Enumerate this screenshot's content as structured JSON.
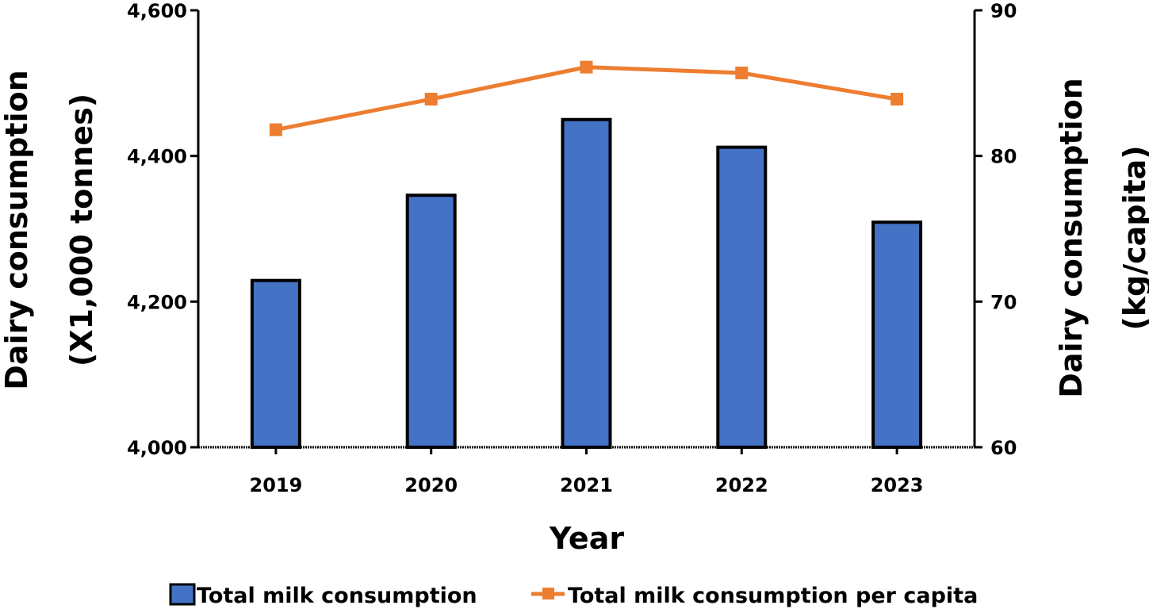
{
  "chart_data": {
    "type": "bar+line",
    "categories": [
      "2019",
      "2020",
      "2021",
      "2022",
      "2023"
    ],
    "series": [
      {
        "name": "Total milk consumption",
        "type": "bar",
        "axis": "left",
        "color": "#4472C4",
        "values": [
          4229,
          4346,
          4450,
          4412,
          4309
        ]
      },
      {
        "name": "Total milk consumption per capita",
        "type": "line",
        "axis": "right",
        "color": "#ED7D31",
        "marker": "square",
        "values": [
          81.8,
          83.9,
          86.1,
          85.7,
          83.9
        ]
      }
    ],
    "xlabel": "Year",
    "ylabel_left": [
      "Dairy consumption",
      "(X1,000 tonnes)"
    ],
    "ylabel_right": [
      "Dairy consumption",
      "(kg/capita)"
    ],
    "ylim_left": [
      4000,
      4600
    ],
    "ylim_right": [
      60,
      90
    ],
    "yticks_left": [
      4000,
      4200,
      4400,
      4600
    ],
    "yticks_left_labels": [
      "4,000",
      "4,200",
      "4,400",
      "4,600"
    ],
    "yticks_right": [
      60,
      70,
      80,
      90
    ],
    "yticks_right_labels": [
      "60",
      "70",
      "80",
      "90"
    ],
    "grid": false,
    "legend_position": "bottom-center"
  }
}
